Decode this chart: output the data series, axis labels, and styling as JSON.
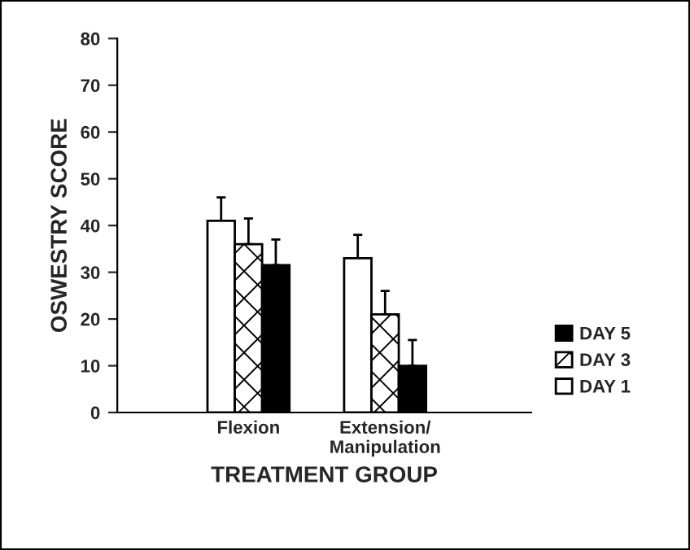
{
  "chart_data": {
    "type": "bar",
    "xlabel": "TREATMENT GROUP",
    "ylabel": "OSWESTRY SCORE",
    "categories": [
      "Flexion",
      "Extension/\nManipulation"
    ],
    "series": [
      {
        "name": "DAY 1",
        "color": "#ffffff",
        "values": [
          41,
          33
        ],
        "errors": [
          5,
          5
        ]
      },
      {
        "name": "DAY 3",
        "color": "#000000",
        "values": [
          36,
          21
        ],
        "errors": [
          5.5,
          5
        ]
      },
      {
        "name": "DAY 5",
        "color": "#000000",
        "values": [
          31.5,
          10
        ],
        "errors": [
          5.5,
          5.5
        ]
      }
    ],
    "ylim": [
      0,
      80
    ],
    "yticks": [
      0,
      10,
      20,
      30,
      40,
      50,
      60,
      70,
      80
    ],
    "grid": false,
    "legend": "bottom right"
  }
}
